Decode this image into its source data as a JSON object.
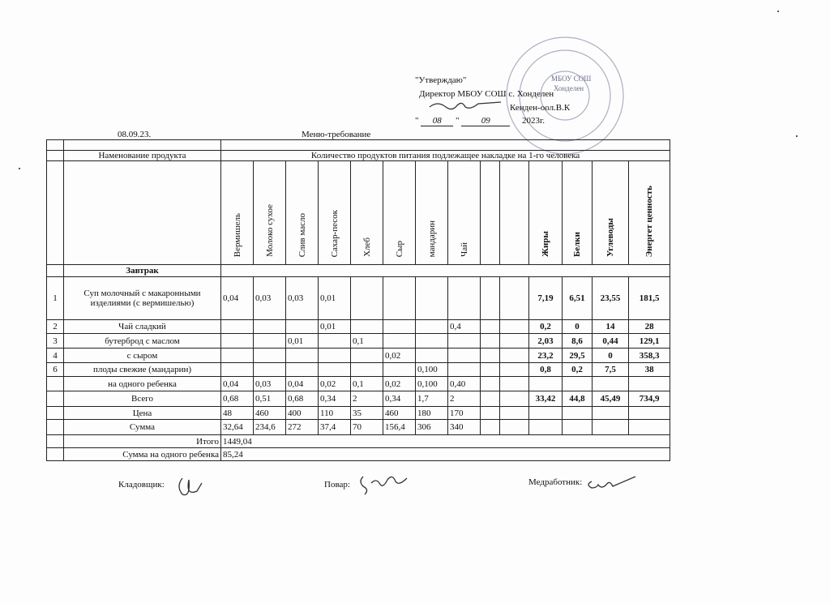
{
  "approval": {
    "line1": "\"Утверждаю\"",
    "line2": "Директор МБОУ СОШ с. Хонделен",
    "line3": "Кенден-оол.В.К",
    "date": {
      "open": "\"",
      "day": "08",
      "close": "\"",
      "month": "09",
      "year": "2023г."
    }
  },
  "stamp": [
    "МБОУ СОШ",
    "Хонделен"
  ],
  "header": {
    "date": "08.09.23.",
    "title": "Меню-требование"
  },
  "table": {
    "col_name": "Наменование продукта",
    "col_quantity": "Количество продуктов питания подлежащее накладке на 1-го человека",
    "products": [
      "Вермишель",
      "Молоко сухое",
      "Слив масло",
      "Сахар-песок",
      "Хлеб",
      "Сыр",
      "мандарин",
      "Чай"
    ],
    "nutrients": [
      "Жиры",
      "Белки",
      "Углеводы",
      "Энергет ценность"
    ],
    "section": "Завтрак",
    "rows": [
      {
        "num": "1",
        "name": "Суп молочный с макаронными изделиями (с вермишелью)",
        "products": [
          "0,04",
          "0,03",
          "0,03",
          "0,01",
          null,
          null,
          null,
          null
        ],
        "nutrients": [
          "7,19",
          "6,51",
          "23,55",
          "181,5"
        ]
      },
      {
        "num": "2",
        "name": "Чай сладкий",
        "products": [
          null,
          null,
          null,
          "0,01",
          null,
          null,
          null,
          "0,4"
        ],
        "nutrients": [
          "0,2",
          "0",
          "14",
          "28"
        ]
      },
      {
        "num": "3",
        "name": "бутерброд с маслом",
        "products": [
          null,
          null,
          "0,01",
          null,
          "0,1",
          null,
          null,
          null
        ],
        "nutrients": [
          "2,03",
          "8,6",
          "0,44",
          "129,1"
        ]
      },
      {
        "num": "4",
        "name": "с сыром",
        "products": [
          null,
          null,
          null,
          null,
          null,
          "0,02",
          null,
          null
        ],
        "nutrients": [
          "23,2",
          "29,5",
          "0",
          "358,3"
        ]
      },
      {
        "num": "6",
        "name": "плоды свежие (мандарин)",
        "products": [
          null,
          null,
          null,
          null,
          null,
          null,
          "0,100",
          null
        ],
        "nutrients": [
          "0,8",
          "0,2",
          "7,5",
          "38"
        ]
      },
      {
        "name": "на одного ребенка",
        "products": [
          "0,04",
          "0,03",
          "0,04",
          "0,02",
          "0,1",
          "0,02",
          "0,100",
          "0,40"
        ]
      },
      {
        "name": "Всего",
        "products": [
          "0,68",
          "0,51",
          "0,68",
          "0,34",
          "2",
          "0,34",
          "1,7",
          "2"
        ],
        "nutrients": [
          "33,42",
          "44,8",
          "45,49",
          "734,9"
        ]
      },
      {
        "name": "Цена",
        "products": [
          "48",
          "460",
          "400",
          "110",
          "35",
          "460",
          "180",
          "170"
        ]
      },
      {
        "name": "Сумма",
        "products": [
          "32,64",
          "234,6",
          "272",
          "37,4",
          "70",
          "156,4",
          "306",
          "340"
        ]
      }
    ],
    "totals": {
      "label": "Итого",
      "value": "1449,04"
    },
    "per_child": {
      "label": "Сумма на одного ребенка",
      "value": "85,24"
    }
  },
  "signatures": [
    "Кладовщик:",
    "Повар:",
    "Медработник:"
  ]
}
